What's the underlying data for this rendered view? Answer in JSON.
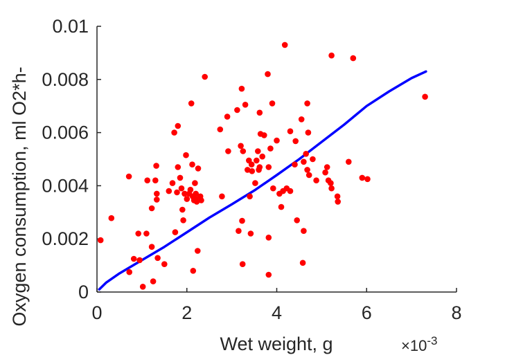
{
  "chart_data": {
    "type": "scatter",
    "title": "",
    "xlabel": "Wet weight, g",
    "ylabel": "Oxygen consumption, ml O2*h-",
    "x_exponent_label": "×10",
    "x_exponent_power": "-3",
    "xlim": [
      0,
      8
    ],
    "ylim": [
      0,
      0.01
    ],
    "xticks": [
      0,
      2,
      4,
      6,
      8
    ],
    "xtick_labels": [
      "0",
      "2",
      "4",
      "6",
      "8"
    ],
    "yticks": [
      0,
      0.002,
      0.004,
      0.006,
      0.008,
      0.01
    ],
    "ytick_labels": [
      "0",
      "0.002",
      "0.004",
      "0.006",
      "0.008",
      "0.01"
    ],
    "grid": false,
    "legend": "none",
    "colors": {
      "points": "#ff0000",
      "fit": "#0000ff",
      "axis": "#262626"
    },
    "series": [
      {
        "kind": "scatter",
        "x_scale": 0.001,
        "points": [
          [
            0.08,
            0.00195
          ],
          [
            0.32,
            0.00278
          ],
          [
            0.71,
            0.00435
          ],
          [
            0.72,
            0.00075
          ],
          [
            0.82,
            0.00125
          ],
          [
            0.92,
            0.0022
          ],
          [
            0.95,
            0.0012
          ],
          [
            1.02,
            0.0002
          ],
          [
            1.1,
            0.0022
          ],
          [
            1.12,
            0.0042
          ],
          [
            1.22,
            0.00315
          ],
          [
            1.22,
            0.0017
          ],
          [
            1.25,
            0.0004
          ],
          [
            1.3,
            0.0042
          ],
          [
            1.32,
            0.00475
          ],
          [
            1.33,
            0.0037
          ],
          [
            1.33,
            0.00348
          ],
          [
            1.35,
            0.00128
          ],
          [
            1.5,
            0.00105
          ],
          [
            1.6,
            0.0038
          ],
          [
            1.68,
            0.0041
          ],
          [
            1.72,
            0.006
          ],
          [
            1.74,
            0.00225
          ],
          [
            1.78,
            0.00375
          ],
          [
            1.8,
            0.00625
          ],
          [
            1.8,
            0.0047
          ],
          [
            1.85,
            0.0043
          ],
          [
            1.88,
            0.0039
          ],
          [
            1.9,
            0.0031
          ],
          [
            1.92,
            0.0027
          ],
          [
            1.95,
            0.0037
          ],
          [
            1.98,
            0.00515
          ],
          [
            2.0,
            0.0035
          ],
          [
            2.05,
            0.0037
          ],
          [
            2.08,
            0.00385
          ],
          [
            2.1,
            0.0071
          ],
          [
            2.12,
            0.0048
          ],
          [
            2.13,
            0.0036
          ],
          [
            2.14,
            0.0008
          ],
          [
            2.16,
            0.00345
          ],
          [
            2.18,
            0.0041
          ],
          [
            2.2,
            0.0037
          ],
          [
            2.2,
            0.0035
          ],
          [
            2.22,
            0.0034
          ],
          [
            2.24,
            0.00155
          ],
          [
            2.25,
            0.00465
          ],
          [
            2.3,
            0.0036
          ],
          [
            2.32,
            0.00345
          ],
          [
            2.4,
            0.0081
          ],
          [
            2.78,
            0.0036
          ],
          [
            2.74,
            0.00612
          ],
          [
            2.9,
            0.0066
          ],
          [
            2.92,
            0.0053
          ],
          [
            3.12,
            0.00685
          ],
          [
            3.15,
            0.0023
          ],
          [
            3.2,
            0.0055
          ],
          [
            3.22,
            0.00765
          ],
          [
            3.23,
            0.00268
          ],
          [
            3.24,
            0.00105
          ],
          [
            3.25,
            0.0053
          ],
          [
            3.3,
            0.00705
          ],
          [
            3.35,
            0.0046
          ],
          [
            3.38,
            0.00495
          ],
          [
            3.4,
            0.0036
          ],
          [
            3.42,
            0.0022
          ],
          [
            3.44,
            0.0048
          ],
          [
            3.45,
            0.00455
          ],
          [
            3.52,
            0.0041
          ],
          [
            3.55,
            0.00495
          ],
          [
            3.58,
            0.0053
          ],
          [
            3.6,
            0.0046
          ],
          [
            3.62,
            0.0047
          ],
          [
            3.62,
            0.00675
          ],
          [
            3.64,
            0.00595
          ],
          [
            3.68,
            0.0051
          ],
          [
            3.72,
            0.0059
          ],
          [
            3.8,
            0.0082
          ],
          [
            3.82,
            0.0047
          ],
          [
            3.82,
            0.00065
          ],
          [
            3.82,
            0.00205
          ],
          [
            3.86,
            0.0054
          ],
          [
            3.9,
            0.0071
          ],
          [
            3.92,
            0.0039
          ],
          [
            4.0,
            0.0057
          ],
          [
            4.06,
            0.0037
          ],
          [
            4.1,
            0.0032
          ],
          [
            4.14,
            0.0038
          ],
          [
            4.18,
            0.0093
          ],
          [
            4.22,
            0.0039
          ],
          [
            4.3,
            0.0038
          ],
          [
            4.3,
            0.00605
          ],
          [
            4.4,
            0.0048
          ],
          [
            4.42,
            0.00568
          ],
          [
            4.45,
            0.0027
          ],
          [
            4.55,
            0.0065
          ],
          [
            4.58,
            0.0011
          ],
          [
            4.6,
            0.0049
          ],
          [
            4.6,
            0.0023
          ],
          [
            4.65,
            0.0052
          ],
          [
            4.68,
            0.0046
          ],
          [
            4.68,
            0.0071
          ],
          [
            4.7,
            0.006
          ],
          [
            4.72,
            0.0044
          ],
          [
            4.8,
            0.005
          ],
          [
            4.88,
            0.0042
          ],
          [
            5.08,
            0.0045
          ],
          [
            5.12,
            0.0047
          ],
          [
            5.15,
            0.0042
          ],
          [
            5.2,
            0.0041
          ],
          [
            5.22,
            0.0039
          ],
          [
            5.22,
            0.0089
          ],
          [
            5.35,
            0.0036
          ],
          [
            5.36,
            0.0034
          ],
          [
            5.6,
            0.0049
          ],
          [
            5.7,
            0.0088
          ],
          [
            5.9,
            0.0043
          ],
          [
            6.02,
            0.00425
          ],
          [
            7.3,
            0.00735
          ]
        ]
      },
      {
        "kind": "line",
        "x_scale": 0.001,
        "points": [
          [
            0.05,
            0.0001
          ],
          [
            0.2,
            0.00035
          ],
          [
            0.5,
            0.0007
          ],
          [
            1.0,
            0.0012
          ],
          [
            1.5,
            0.0017
          ],
          [
            2.0,
            0.00225
          ],
          [
            2.5,
            0.0028
          ],
          [
            3.0,
            0.0033
          ],
          [
            3.5,
            0.00382
          ],
          [
            4.0,
            0.0044
          ],
          [
            4.5,
            0.005
          ],
          [
            5.0,
            0.00565
          ],
          [
            5.5,
            0.0063
          ],
          [
            6.0,
            0.007
          ],
          [
            6.5,
            0.00755
          ],
          [
            7.0,
            0.00805
          ],
          [
            7.32,
            0.0083
          ]
        ]
      }
    ]
  }
}
